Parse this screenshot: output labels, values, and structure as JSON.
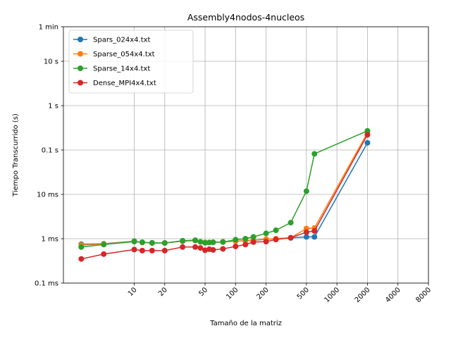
{
  "chart_data": {
    "type": "line",
    "title": "Assembly4nodos-4nucleos",
    "xlabel": "Tamaño de la matriz",
    "ylabel": "Tiempo Transcurrido (s)",
    "x_scale": "log",
    "y_scale": "log",
    "xlim": [
      2,
      8000
    ],
    "ylim": [
      0.0001,
      60
    ],
    "x_ticks": [
      {
        "value": 10,
        "label": "10"
      },
      {
        "value": 20,
        "label": "20"
      },
      {
        "value": 50,
        "label": "50"
      },
      {
        "value": 100,
        "label": "100"
      },
      {
        "value": 200,
        "label": "200"
      },
      {
        "value": 500,
        "label": "500"
      },
      {
        "value": 1000,
        "label": "1000"
      },
      {
        "value": 2000,
        "label": "2000"
      },
      {
        "value": 4000,
        "label": "4000"
      },
      {
        "value": 8000,
        "label": "8000"
      }
    ],
    "y_ticks": [
      {
        "value": 0.0001,
        "label": "0.1 ms"
      },
      {
        "value": 0.001,
        "label": "1 ms"
      },
      {
        "value": 0.01,
        "label": "10 ms"
      },
      {
        "value": 0.1,
        "label": "0.1 s"
      },
      {
        "value": 1,
        "label": "1 s"
      },
      {
        "value": 10,
        "label": "10 s"
      },
      {
        "value": 60,
        "label": "1 min"
      }
    ],
    "grid": true,
    "legend_position": "top-left",
    "series": [
      {
        "name": "Spars_024x4.txt",
        "color": "#1f77b4",
        "x": [
          3,
          5,
          10,
          12,
          15,
          20,
          30,
          40,
          50,
          60,
          75,
          100,
          125,
          150,
          200,
          250,
          350,
          500,
          600,
          2000
        ],
        "y": [
          0.00075,
          0.00077,
          0.00088,
          0.00083,
          0.0008,
          0.0008,
          0.0009,
          0.00092,
          0.00082,
          0.00083,
          0.00085,
          0.00088,
          0.0009,
          0.00092,
          0.00097,
          0.001,
          0.00104,
          0.0011,
          0.0011,
          0.145
        ]
      },
      {
        "name": "Sparse_054x4.txt",
        "color": "#ff7f0e",
        "x": [
          3,
          5,
          10,
          12,
          15,
          20,
          30,
          40,
          50,
          60,
          75,
          100,
          125,
          150,
          200,
          250,
          350,
          500,
          600,
          2000
        ],
        "y": [
          0.00072,
          0.00076,
          0.00087,
          0.00082,
          0.0008,
          0.0008,
          0.00088,
          0.00091,
          0.00082,
          0.00083,
          0.00085,
          0.00088,
          0.0009,
          0.00093,
          0.00098,
          0.001,
          0.00105,
          0.0017,
          0.00175,
          0.245
        ]
      },
      {
        "name": "Sparse_14x4.txt",
        "color": "#2ca02c",
        "x": [
          3,
          5,
          10,
          12,
          15,
          20,
          30,
          40,
          45,
          50,
          55,
          60,
          75,
          100,
          125,
          150,
          200,
          250,
          350,
          500,
          600,
          2000
        ],
        "y": [
          0.00065,
          0.00074,
          0.00086,
          0.00083,
          0.00081,
          0.0008,
          0.00089,
          0.00092,
          0.00085,
          0.00081,
          0.00082,
          0.00083,
          0.00084,
          0.00095,
          0.001,
          0.0011,
          0.00132,
          0.00155,
          0.0023,
          0.0118,
          0.082,
          0.27
        ]
      },
      {
        "name": "Dense_MPI4x4.txt",
        "color": "#d62728",
        "x": [
          3,
          5,
          10,
          12,
          15,
          20,
          30,
          40,
          45,
          50,
          55,
          60,
          75,
          100,
          125,
          150,
          200,
          250,
          350,
          500,
          600,
          2000
        ],
        "y": [
          0.00035,
          0.00045,
          0.00057,
          0.00054,
          0.00054,
          0.00054,
          0.00065,
          0.00065,
          0.00062,
          0.00055,
          0.00058,
          0.00056,
          0.00059,
          0.00067,
          0.00074,
          0.00084,
          0.00086,
          0.00096,
          0.00105,
          0.0014,
          0.0015,
          0.22
        ]
      }
    ]
  }
}
